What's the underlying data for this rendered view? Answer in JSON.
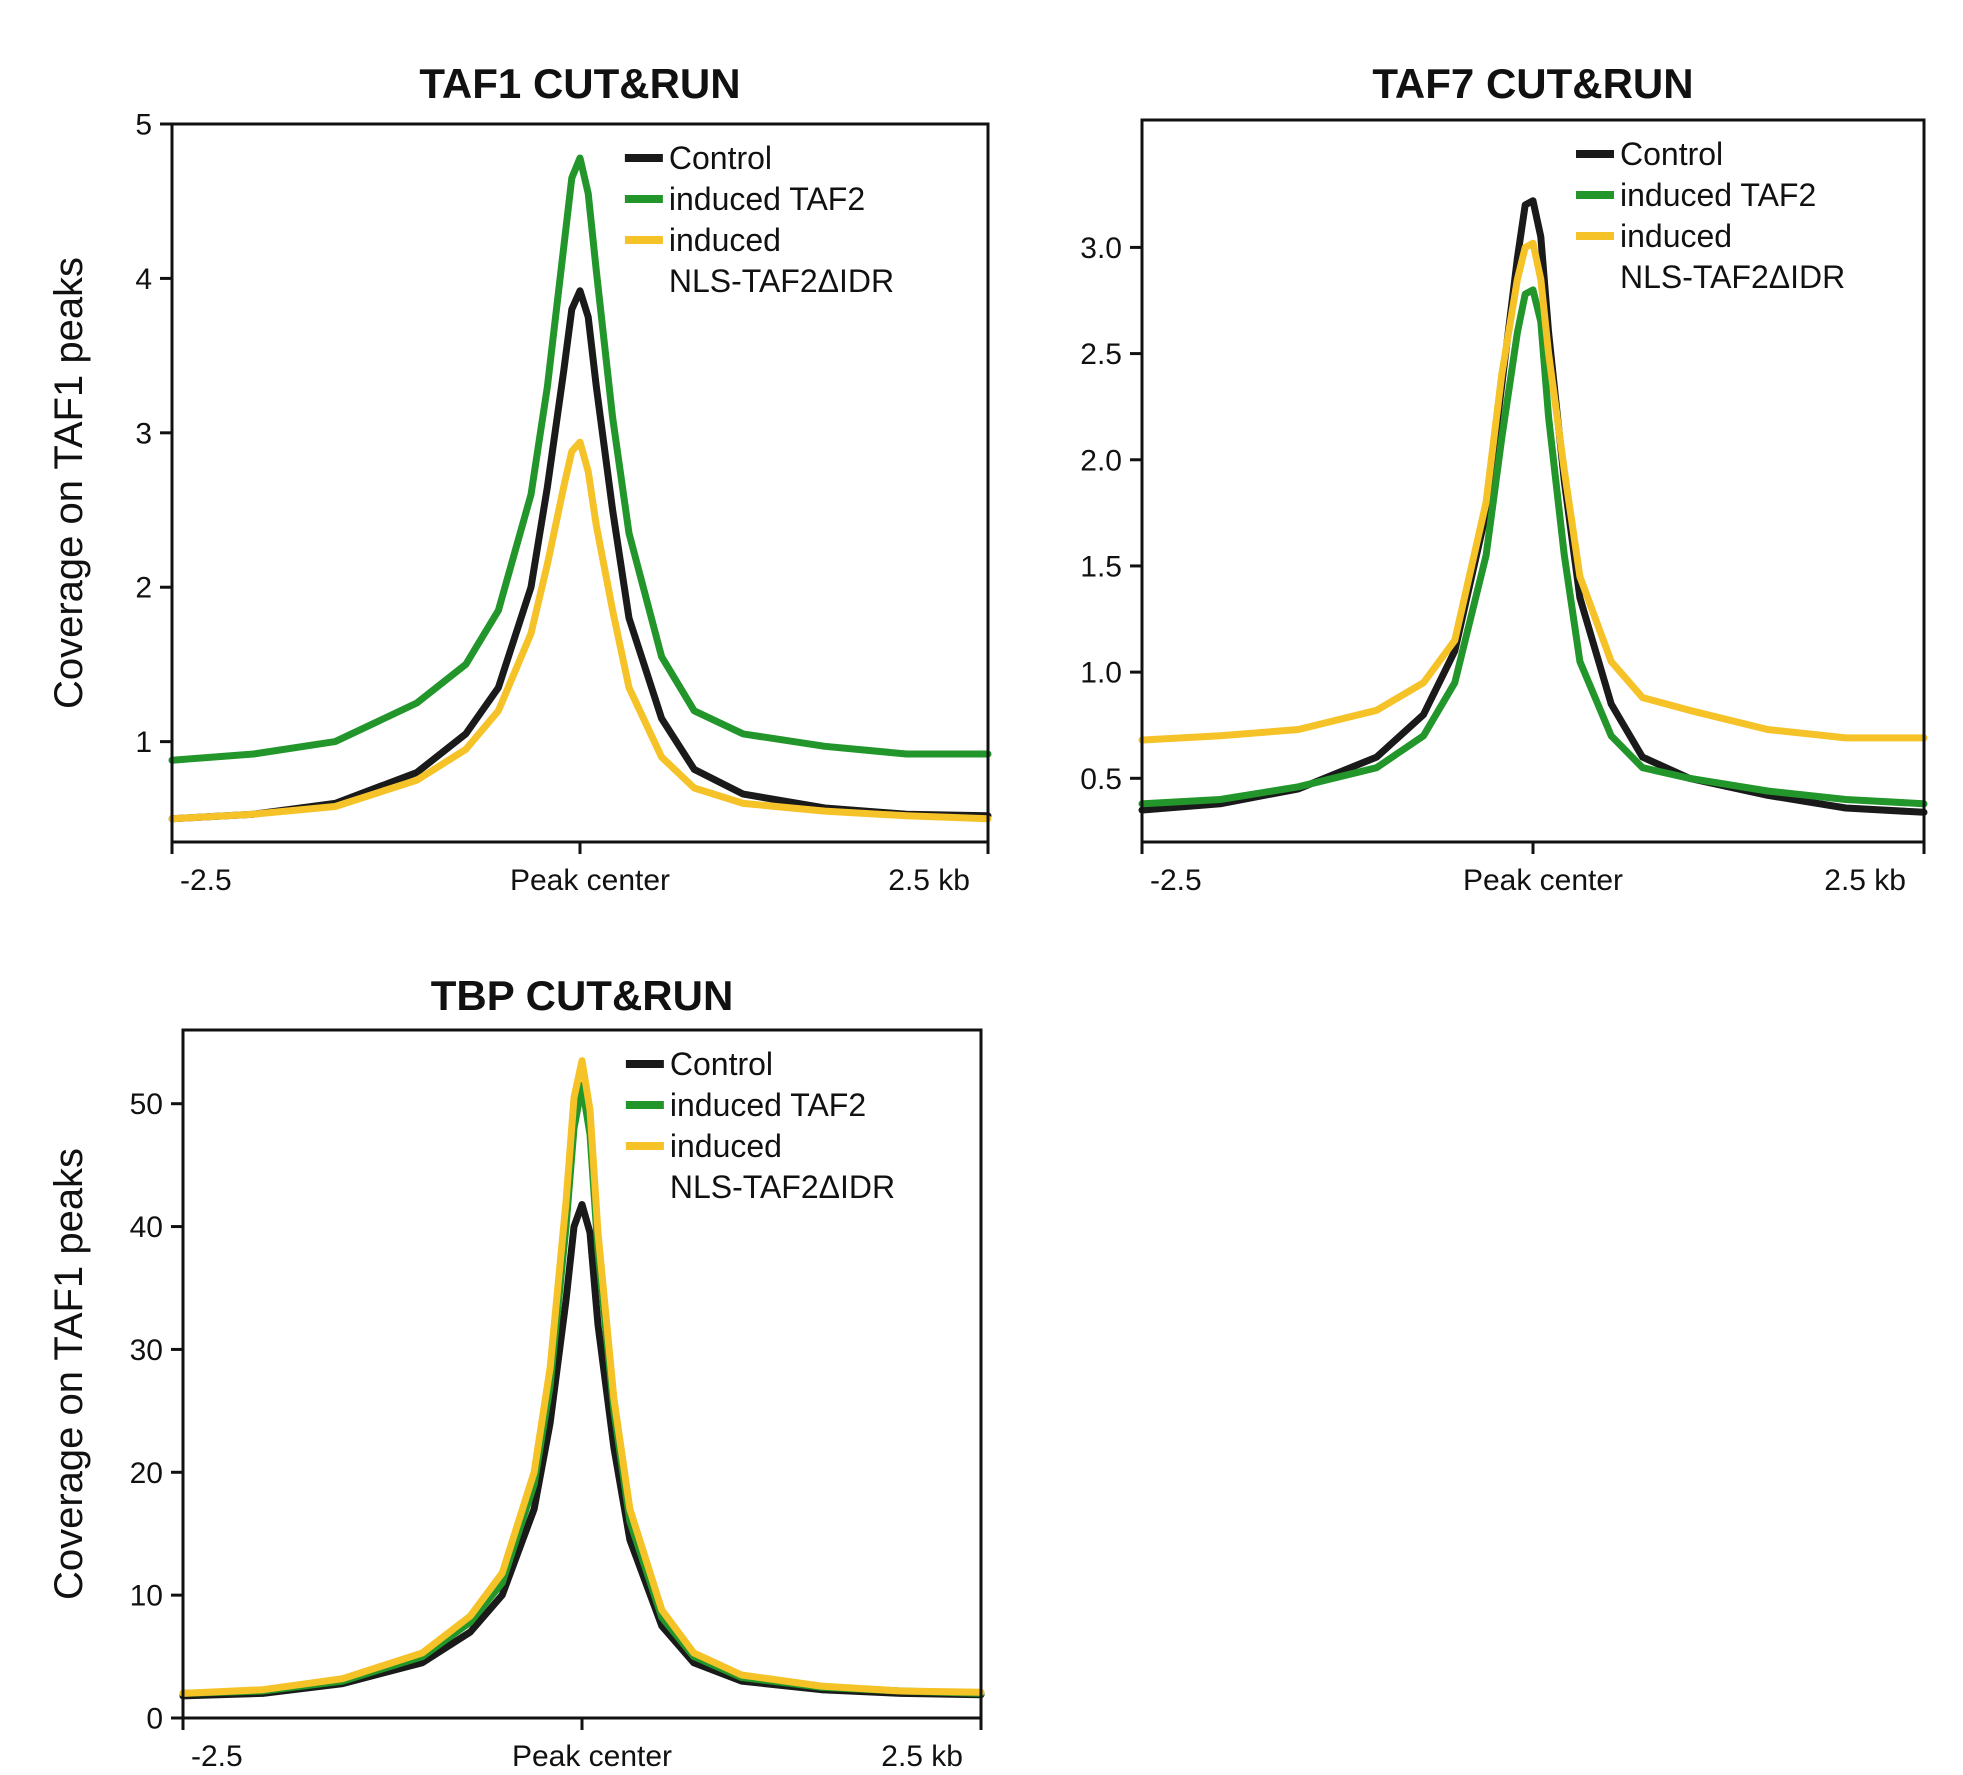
{
  "chart_data": [
    {
      "type": "line",
      "title": "TAF1 CUT&RUN",
      "ylabel": "Coverage on TAF1 peaks",
      "xlabel": "",
      "xlim": [
        -2.5,
        2.5
      ],
      "ylim": [
        0.35,
        5.0
      ],
      "yticks": [
        "5",
        "4",
        "3",
        "2",
        "1"
      ],
      "ytick_values": [
        5,
        4,
        3,
        2,
        1
      ],
      "xtick_labels": [
        "-2.5",
        "Peak center",
        "2.5 kb"
      ],
      "legend": [
        "Control",
        "induced TAF2",
        "induced",
        "NLS-TAF2ΔIDR"
      ],
      "x": [
        -2.5,
        -2.0,
        -1.5,
        -1.0,
        -0.7,
        -0.5,
        -0.3,
        -0.2,
        -0.1,
        -0.05,
        0,
        0.05,
        0.1,
        0.2,
        0.3,
        0.5,
        0.7,
        1.0,
        1.5,
        2.0,
        2.5
      ],
      "series": [
        {
          "name": "Control",
          "color": "#1a1a1a",
          "values": [
            0.5,
            0.53,
            0.6,
            0.8,
            1.05,
            1.35,
            2.0,
            2.65,
            3.4,
            3.8,
            3.92,
            3.75,
            3.3,
            2.5,
            1.8,
            1.15,
            0.82,
            0.66,
            0.57,
            0.53,
            0.52
          ]
        },
        {
          "name": "induced TAF2",
          "color": "#22962b",
          "values": [
            0.88,
            0.92,
            1.0,
            1.25,
            1.5,
            1.85,
            2.6,
            3.3,
            4.2,
            4.65,
            4.78,
            4.55,
            4.05,
            3.1,
            2.35,
            1.55,
            1.2,
            1.05,
            0.97,
            0.92,
            0.92
          ]
        },
        {
          "name": "induced NLS-TAF2ΔIDR",
          "color": "#f5c228",
          "values": [
            0.5,
            0.53,
            0.58,
            0.75,
            0.95,
            1.2,
            1.7,
            2.15,
            2.65,
            2.88,
            2.94,
            2.75,
            2.4,
            1.85,
            1.35,
            0.9,
            0.7,
            0.6,
            0.55,
            0.52,
            0.5
          ]
        }
      ]
    },
    {
      "type": "line",
      "title": "TAF7 CUT&RUN",
      "ylabel": "",
      "xlabel": "",
      "xlim": [
        -2.5,
        2.5
      ],
      "ylim": [
        0.2,
        3.6
      ],
      "yticks": [
        "3.0",
        "2.5",
        "2.0",
        "1.5",
        "1.0",
        "0.5"
      ],
      "ytick_values": [
        3.0,
        2.5,
        2.0,
        1.5,
        1.0,
        0.5
      ],
      "xtick_labels": [
        "-2.5",
        "Peak center",
        "2.5 kb"
      ],
      "legend": [
        "Control",
        "induced TAF2",
        "induced",
        "NLS-TAF2ΔIDR"
      ],
      "x": [
        -2.5,
        -2.0,
        -1.5,
        -1.0,
        -0.7,
        -0.5,
        -0.3,
        -0.2,
        -0.1,
        -0.05,
        0,
        0.05,
        0.1,
        0.2,
        0.3,
        0.5,
        0.7,
        1.0,
        1.5,
        2.0,
        2.5
      ],
      "series": [
        {
          "name": "Control",
          "color": "#1a1a1a",
          "values": [
            0.35,
            0.38,
            0.45,
            0.6,
            0.8,
            1.1,
            1.75,
            2.35,
            2.95,
            3.2,
            3.22,
            3.05,
            2.6,
            1.9,
            1.35,
            0.85,
            0.6,
            0.5,
            0.42,
            0.36,
            0.34
          ]
        },
        {
          "name": "induced TAF2",
          "color": "#22962b",
          "values": [
            0.38,
            0.4,
            0.46,
            0.55,
            0.7,
            0.95,
            1.55,
            2.1,
            2.6,
            2.78,
            2.8,
            2.65,
            2.2,
            1.55,
            1.05,
            0.7,
            0.55,
            0.5,
            0.44,
            0.4,
            0.38
          ]
        },
        {
          "name": "induced NLS-TAF2ΔIDR",
          "color": "#f5c228",
          "values": [
            0.68,
            0.7,
            0.73,
            0.82,
            0.95,
            1.15,
            1.8,
            2.4,
            2.85,
            3.0,
            3.02,
            2.85,
            2.5,
            1.95,
            1.45,
            1.05,
            0.88,
            0.82,
            0.73,
            0.69,
            0.69
          ]
        }
      ]
    },
    {
      "type": "line",
      "title": "TBP CUT&RUN",
      "ylabel": "Coverage on TAF1 peaks",
      "xlabel": "",
      "xlim": [
        -2.5,
        2.5
      ],
      "ylim": [
        0,
        56
      ],
      "yticks": [
        "50",
        "40",
        "30",
        "20",
        "10",
        "0"
      ],
      "ytick_values": [
        50,
        40,
        30,
        20,
        10,
        0
      ],
      "xtick_labels": [
        "-2.5",
        "Peak center",
        "2.5 kb"
      ],
      "legend": [
        "Control",
        "induced TAF2",
        "induced",
        "NLS-TAF2ΔIDR"
      ],
      "x": [
        -2.5,
        -2.0,
        -1.5,
        -1.0,
        -0.7,
        -0.5,
        -0.3,
        -0.2,
        -0.1,
        -0.05,
        0,
        0.05,
        0.1,
        0.2,
        0.3,
        0.5,
        0.7,
        1.0,
        1.5,
        2.0,
        2.5
      ],
      "series": [
        {
          "name": "Control",
          "color": "#1a1a1a",
          "values": [
            1.8,
            2.0,
            2.8,
            4.5,
            7.0,
            10.0,
            17.0,
            24.0,
            34.0,
            40.0,
            41.8,
            39.5,
            32.0,
            22.0,
            14.5,
            7.5,
            4.5,
            3.0,
            2.3,
            2.0,
            1.9
          ]
        },
        {
          "name": "induced TAF2",
          "color": "#22962b",
          "values": [
            2.0,
            2.2,
            3.0,
            5.0,
            7.8,
            11.0,
            19.0,
            27.0,
            40.0,
            48.0,
            51.5,
            47.5,
            38.0,
            25.0,
            16.0,
            8.2,
            5.0,
            3.3,
            2.5,
            2.2,
            2.0
          ]
        },
        {
          "name": "induced NLS-TAF2ΔIDR",
          "color": "#f5c228",
          "values": [
            2.0,
            2.3,
            3.2,
            5.3,
            8.3,
            11.8,
            20.0,
            28.5,
            42.0,
            50.5,
            53.5,
            49.5,
            39.5,
            26.0,
            17.0,
            8.8,
            5.3,
            3.5,
            2.6,
            2.2,
            2.1
          ]
        }
      ]
    }
  ]
}
